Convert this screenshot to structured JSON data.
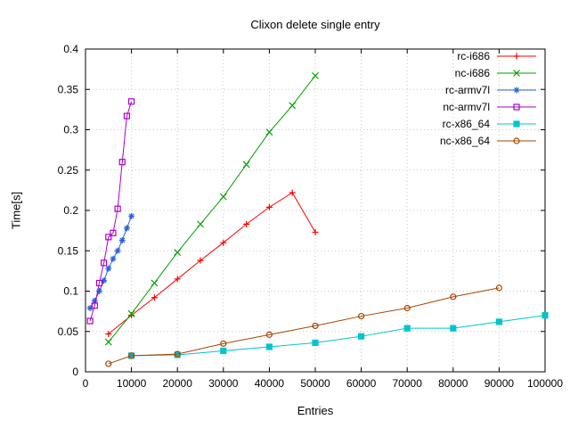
{
  "chart_data": {
    "type": "line",
    "title": "Clixon delete single entry",
    "xlabel": "Entries",
    "ylabel": "Time[s]",
    "xlim": [
      0,
      100000
    ],
    "ylim": [
      0,
      0.4
    ],
    "xtick_step": 10000,
    "ytick_step": 0.05,
    "grid": true,
    "legend_position": "top-right-inside",
    "series": [
      {
        "name": "rc-i686",
        "color": "#ff0000",
        "marker": "plus",
        "points": [
          [
            5000,
            0.047
          ],
          [
            10000,
            0.07
          ],
          [
            15000,
            0.092
          ],
          [
            20000,
            0.115
          ],
          [
            25000,
            0.138
          ],
          [
            30000,
            0.16
          ],
          [
            35000,
            0.183
          ],
          [
            40000,
            0.204
          ],
          [
            45000,
            0.222
          ],
          [
            50000,
            0.173
          ]
        ]
      },
      {
        "name": "nc-i686",
        "color": "#00a000",
        "marker": "cross",
        "points": [
          [
            5000,
            0.037
          ],
          [
            10000,
            0.072
          ],
          [
            15000,
            0.11
          ],
          [
            20000,
            0.148
          ],
          [
            25000,
            0.183
          ],
          [
            30000,
            0.217
          ],
          [
            35000,
            0.257
          ],
          [
            40000,
            0.297
          ],
          [
            45000,
            0.33
          ],
          [
            50000,
            0.367
          ]
        ]
      },
      {
        "name": "rc-armv7l",
        "color": "#2b60de",
        "marker": "asterisk",
        "points": [
          [
            1000,
            0.079
          ],
          [
            2000,
            0.088
          ],
          [
            3000,
            0.1
          ],
          [
            4000,
            0.113
          ],
          [
            5000,
            0.128
          ],
          [
            6000,
            0.14
          ],
          [
            7000,
            0.15
          ],
          [
            8000,
            0.163
          ],
          [
            9000,
            0.178
          ],
          [
            10000,
            0.193
          ]
        ]
      },
      {
        "name": "nc-armv7l",
        "color": "#aa00cc",
        "marker": "square-open",
        "points": [
          [
            1000,
            0.063
          ],
          [
            2000,
            0.082
          ],
          [
            3000,
            0.11
          ],
          [
            4000,
            0.135
          ],
          [
            5000,
            0.167
          ],
          [
            6000,
            0.172
          ],
          [
            7000,
            0.202
          ],
          [
            8000,
            0.26
          ],
          [
            9000,
            0.317
          ],
          [
            10000,
            0.335
          ]
        ]
      },
      {
        "name": "rc-x86_64",
        "color": "#00c5cd",
        "marker": "square-filled",
        "points": [
          [
            10000,
            0.02
          ],
          [
            20000,
            0.021
          ],
          [
            30000,
            0.026
          ],
          [
            40000,
            0.031
          ],
          [
            50000,
            0.036
          ],
          [
            60000,
            0.044
          ],
          [
            70000,
            0.054
          ],
          [
            80000,
            0.054
          ],
          [
            90000,
            0.062
          ],
          [
            100000,
            0.07
          ]
        ]
      },
      {
        "name": "nc-x86_64",
        "color": "#aa4400",
        "marker": "circle-open",
        "points": [
          [
            5000,
            0.01
          ],
          [
            10000,
            0.02
          ],
          [
            20000,
            0.022
          ],
          [
            30000,
            0.035
          ],
          [
            40000,
            0.046
          ],
          [
            50000,
            0.057
          ],
          [
            60000,
            0.069
          ],
          [
            70000,
            0.079
          ],
          [
            80000,
            0.093
          ],
          [
            90000,
            0.104
          ]
        ]
      }
    ]
  }
}
